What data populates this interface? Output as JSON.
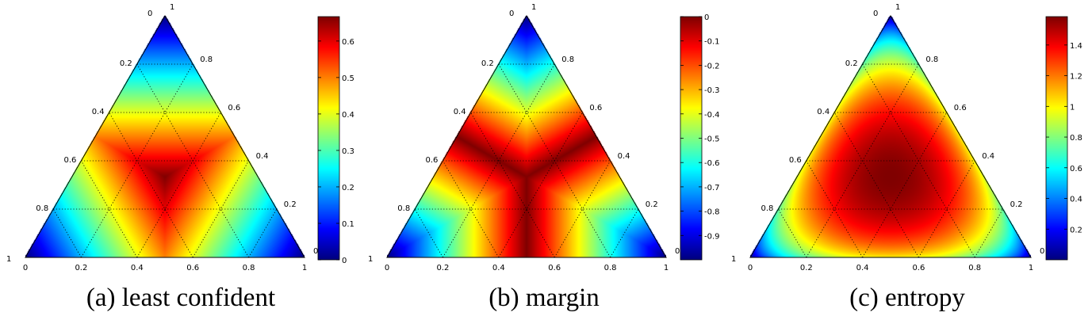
{
  "chart_data": [
    {
      "type": "heatmap",
      "caption": "(a) least confident",
      "metric": "least_confident",
      "side_ticks": [
        "0",
        "0.2",
        "0.4",
        "0.6",
        "0.8",
        "1"
      ],
      "corner_labels": [
        "0",
        "1",
        "0",
        "1"
      ],
      "colorbar": {
        "range": [
          0,
          0.667
        ],
        "ticks": [
          0,
          0.1,
          0.2,
          0.3,
          0.4,
          0.5,
          0.6
        ],
        "tick_labels": [
          "0",
          "0.1",
          "0.2",
          "0.3",
          "0.4",
          "0.5",
          "0.6"
        ]
      }
    },
    {
      "type": "heatmap",
      "caption": "(b) margin",
      "metric": "margin",
      "side_ticks": [
        "0",
        "0.2",
        "0.4",
        "0.6",
        "0.8",
        "1"
      ],
      "corner_labels": [
        "0",
        "1",
        "0",
        "1"
      ],
      "colorbar": {
        "range": [
          -1,
          0
        ],
        "ticks": [
          0,
          -0.1,
          -0.2,
          -0.3,
          -0.4,
          -0.5,
          -0.6,
          -0.7,
          -0.8,
          -0.9
        ],
        "tick_labels": [
          "0",
          "-0.1",
          "-0.2",
          "-0.3",
          "-0.4",
          "-0.5",
          "-0.6",
          "-0.7",
          "-0.8",
          "-0.9"
        ]
      }
    },
    {
      "type": "heatmap",
      "caption": "(c) entropy",
      "metric": "entropy",
      "side_ticks": [
        "0",
        "0.2",
        "0.4",
        "0.6",
        "0.8",
        "1"
      ],
      "corner_labels": [
        "0",
        "1",
        "0",
        "1"
      ],
      "colorbar": {
        "range": [
          0,
          1.585
        ],
        "ticks": [
          0.2,
          0.4,
          0.6,
          0.8,
          1,
          1.2,
          1.4
        ],
        "tick_labels": [
          "0.2",
          "0.4",
          "0.6",
          "0.8",
          "1",
          "1.2",
          "1.4"
        ]
      }
    }
  ],
  "colormap": "jet",
  "colors": {
    "tri_edge": "#000000",
    "grid_line": "#000000",
    "background": "#ffffff"
  }
}
